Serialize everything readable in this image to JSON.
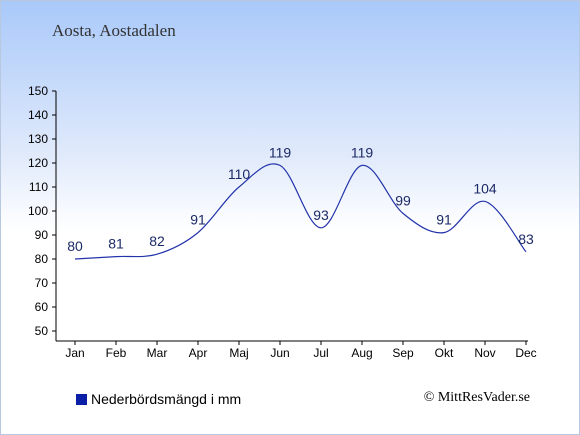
{
  "header": {
    "location": "Aosta, Aostadalen"
  },
  "legend": {
    "label": "Nederbördsmängd i mm"
  },
  "credit": "© MittResVader.se",
  "colors": {
    "series": "#2233aa",
    "labels": "#1c2a66",
    "legend_swatch": "#0a1fa6"
  },
  "chart_data": {
    "type": "line",
    "title": "",
    "xlabel": "",
    "ylabel": "",
    "categories": [
      "Jan",
      "Feb",
      "Mar",
      "Apr",
      "Maj",
      "Jun",
      "Jul",
      "Aug",
      "Sep",
      "Okt",
      "Nov",
      "Dec"
    ],
    "series": [
      {
        "name": "Nederbördsmängd i mm",
        "values": [
          80,
          81,
          82,
          91,
          110,
          119,
          93,
          119,
          99,
          91,
          104,
          83
        ]
      }
    ],
    "data_labels": [
      "80",
      "81",
      "82",
      "91",
      "110",
      "119",
      "93",
      "119",
      "99",
      "91",
      "104",
      "83"
    ],
    "ylim": [
      50,
      150
    ],
    "yticks": [
      50,
      60,
      70,
      80,
      90,
      100,
      110,
      120,
      130,
      140,
      150
    ],
    "grid": false,
    "legend_position": "bottom-left"
  }
}
